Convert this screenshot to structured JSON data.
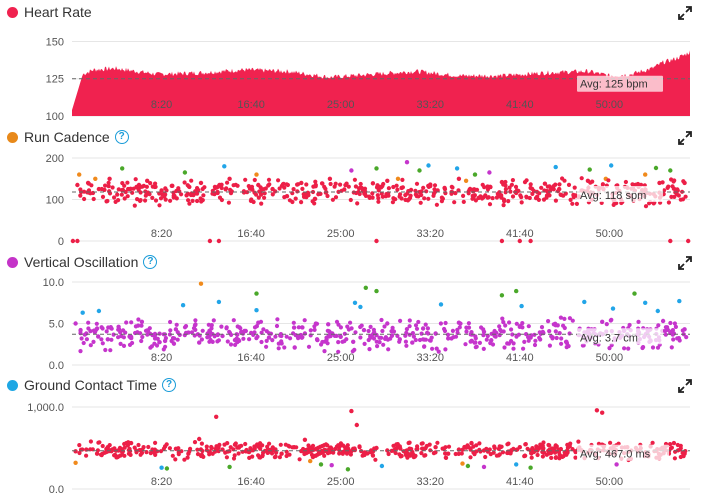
{
  "colors": {
    "heart_rate": "#f0224f",
    "cadence_title": "#e8891a",
    "vertical_title": "#c433c8",
    "gct_title": "#1ea7e4",
    "help": "#1a9cd8",
    "red": "#ec1f47",
    "orange": "#f08a1c",
    "green": "#4aa82a",
    "blue": "#22a5e8",
    "purple": "#c535cc",
    "grid": "#e6e6e6",
    "avg_line": "#666666"
  },
  "x_ticks": [
    "8:20",
    "16:40",
    "25:00",
    "33:20",
    "41:40",
    "50:00"
  ],
  "panels": [
    {
      "id": "heart-rate",
      "title": "Heart Rate",
      "dot_color": "#f0224f",
      "has_help": false,
      "y_ticks": [
        "150",
        "125",
        "100"
      ],
      "avg_label": "Avg: 125 bpm"
    },
    {
      "id": "run-cadence",
      "title": "Run Cadence",
      "dot_color": "#e8891a",
      "has_help": true,
      "y_ticks": [
        "200",
        "100",
        "0"
      ],
      "avg_label": "Avg: 118 spm"
    },
    {
      "id": "vertical-oscillation",
      "title": "Vertical Oscillation",
      "dot_color": "#c433c8",
      "has_help": true,
      "y_ticks": [
        "10.0",
        "5.0",
        "0.0"
      ],
      "avg_label": "Avg: 3.7 cm"
    },
    {
      "id": "ground-contact-time",
      "title": "Ground Contact Time",
      "dot_color": "#1ea7e4",
      "has_help": true,
      "y_ticks": [
        "1,000.0",
        "0.0"
      ],
      "avg_label": "Avg: 467.0 ms"
    }
  ],
  "chart_data": [
    {
      "type": "area",
      "title": "Heart Rate",
      "xlim_seconds": [
        0,
        3450
      ],
      "x_tick_labels": [
        "8:20",
        "16:40",
        "25:00",
        "33:20",
        "41:40",
        "50:00"
      ],
      "ylim": [
        100,
        155
      ],
      "y_ticks": [
        100,
        125,
        150
      ],
      "average": 125,
      "average_label": "Avg: 125 bpm",
      "series": [
        {
          "x": [
            0,
            60,
            120,
            240,
            480,
            720,
            960,
            1200,
            1440,
            1680,
            1920,
            2160,
            2400,
            2640,
            2880,
            3000,
            3120,
            3240,
            3300,
            3360,
            3420,
            3450
          ],
          "values": [
            104,
            128,
            131,
            132,
            128,
            129,
            131,
            130,
            126,
            128,
            130,
            127,
            127,
            129,
            130,
            127,
            128,
            132,
            136,
            138,
            141,
            143
          ]
        }
      ]
    },
    {
      "type": "scatter",
      "title": "Run Cadence",
      "xlim_seconds": [
        0,
        3450
      ],
      "ylim": [
        0,
        200
      ],
      "y_ticks": [
        0,
        100,
        200
      ],
      "average": 118,
      "average_label": "Avg: 118 spm",
      "series": [
        {
          "color": "red",
          "x": [
            30,
            90,
            150,
            210,
            300,
            360,
            420,
            500,
            560,
            640,
            720,
            800,
            880,
            960,
            1040,
            1120,
            1200,
            1280,
            1360,
            1440,
            1520,
            1600,
            1680,
            1760,
            1840,
            1920,
            2000,
            2080,
            2160,
            2240,
            2320,
            2400,
            2480,
            2560,
            2640,
            2720,
            2800,
            2880,
            2960,
            3040,
            3120,
            3200,
            3280,
            3360,
            3420
          ],
          "values": [
            135,
            140,
            125,
            150,
            118,
            130,
            145,
            122,
            133,
            110,
            140,
            128,
            150,
            117,
            135,
            125,
            108,
            140,
            132,
            150,
            124,
            118,
            139,
            145,
            128,
            112,
            136,
            128,
            150,
            120,
            131,
            142,
            116,
            128,
            138,
            125,
            110,
            145,
            129,
            133,
            108,
            122,
            140,
            126,
            140
          ]
        },
        {
          "color": "red",
          "x": [
            5,
            30,
            770,
            820,
            1700,
            2400,
            2500,
            2560,
            3340,
            3440
          ],
          "values": [
            0,
            0,
            0,
            0,
            0,
            0,
            0,
            0,
            0,
            0
          ]
        },
        {
          "color": "orange",
          "x": [
            40,
            130,
            1030,
            1820,
            2200,
            2980,
            3200
          ],
          "values": [
            160,
            150,
            160,
            150,
            145,
            150,
            160
          ]
        },
        {
          "color": "green",
          "x": [
            280,
            630,
            1700,
            1940,
            2250,
            2890,
            3260,
            3340
          ],
          "values": [
            175,
            165,
            175,
            170,
            160,
            172,
            176,
            170
          ]
        },
        {
          "color": "blue",
          "x": [
            850,
            1990,
            2150,
            2700,
            3010
          ],
          "values": [
            180,
            182,
            175,
            178,
            182
          ]
        },
        {
          "color": "purple",
          "x": [
            1870,
            1560,
            2330
          ],
          "values": [
            190,
            170,
            165
          ]
        }
      ]
    },
    {
      "type": "scatter",
      "title": "Vertical Oscillation",
      "xlim_seconds": [
        0,
        3450
      ],
      "ylim": [
        0,
        10
      ],
      "y_ticks": [
        0.0,
        5.0,
        10.0
      ],
      "average": 3.7,
      "average_label": "Avg: 3.7 cm",
      "series": [
        {
          "color": "purple",
          "x": [
            20,
            80,
            140,
            200,
            260,
            330,
            390,
            450,
            520,
            580,
            650,
            710,
            780,
            840,
            910,
            970,
            1040,
            1100,
            1170,
            1240,
            1300,
            1370,
            1430,
            1500,
            1570,
            1630,
            1700,
            1760,
            1830,
            1900,
            1960,
            2030,
            2100,
            2160,
            2230,
            2300,
            2360,
            2430,
            2500,
            2560,
            2630,
            2700,
            2760,
            2830,
            2900,
            2960,
            3030,
            3100,
            3160,
            3230,
            3300,
            3360,
            3420
          ],
          "values": [
            5.0,
            3.8,
            4.4,
            3.1,
            4.6,
            3.4,
            5.2,
            3.6,
            2.9,
            4.3,
            3.9,
            2.7,
            4.8,
            3.5,
            3.0,
            4.1,
            5.1,
            3.3,
            2.6,
            4.5,
            3.8,
            3.0,
            4.9,
            3.4,
            2.8,
            4.2,
            3.6,
            5.0,
            3.1,
            2.7,
            4.4,
            3.8,
            3.2,
            5.1,
            2.9,
            4.0,
            3.5,
            2.6,
            4.6,
            3.3,
            3.9,
            4.8,
            2.8,
            3.6,
            4.3,
            5.2,
            3.0,
            3.7,
            4.1,
            2.9,
            5.3,
            3.8,
            4.3
          ]
        },
        {
          "color": "blue",
          "x": [
            60,
            150,
            620,
            820,
            1030,
            1580,
            1610,
            2060,
            2510,
            2860,
            3020,
            3200,
            3270,
            3390
          ],
          "values": [
            6.3,
            6.5,
            7.2,
            7.6,
            6.6,
            7.5,
            7.0,
            7.3,
            7.1,
            7.6,
            6.8,
            7.5,
            6.5,
            7.7
          ]
        },
        {
          "color": "green",
          "x": [
            1030,
            1640,
            1700,
            2400,
            2480,
            3140
          ],
          "values": [
            8.6,
            9.3,
            8.9,
            8.4,
            8.9,
            8.6
          ]
        },
        {
          "color": "orange",
          "x": [
            720
          ],
          "values": [
            9.8
          ]
        }
      ]
    },
    {
      "type": "scatter",
      "title": "Ground Contact Time",
      "xlim_seconds": [
        0,
        3450
      ],
      "ylim": [
        0,
        1000
      ],
      "y_ticks": [
        0.0,
        1000.0
      ],
      "average": 467.0,
      "average_label": "Avg: 467.0 ms",
      "series": [
        {
          "color": "red",
          "x": [
            20,
            80,
            140,
            200,
            260,
            330,
            390,
            450,
            520,
            580,
            650,
            710,
            780,
            840,
            910,
            970,
            1040,
            1100,
            1170,
            1240,
            1300,
            1370,
            1430,
            1500,
            1570,
            1630,
            1700,
            1760,
            1830,
            1900,
            1960,
            2030,
            2100,
            2160,
            2230,
            2300,
            2360,
            2430,
            2500,
            2560,
            2630,
            2700,
            2760,
            2830,
            2900,
            2960,
            3030,
            3100,
            3160,
            3230,
            3300,
            3360,
            3420
          ],
          "values": [
            460,
            480,
            430,
            510,
            470,
            560,
            440,
            470,
            520,
            490,
            430,
            610,
            500,
            480,
            540,
            460,
            520,
            470,
            430,
            510,
            600,
            480,
            460,
            530,
            490,
            440,
            500,
            470,
            520,
            450,
            490,
            510,
            430,
            480,
            560,
            470,
            500,
            440,
            510,
            470,
            490,
            530,
            460,
            500,
            470,
            540,
            480,
            510,
            460,
            520,
            480,
            560,
            430
          ]
        },
        {
          "color": "red",
          "x": [
            805,
            1560,
            1590,
            2930,
            2960
          ],
          "values": [
            880,
            950,
            780,
            960,
            930
          ]
        },
        {
          "color": "blue",
          "x": [
            500,
            1730,
            2480
          ],
          "values": [
            260,
            280,
            300
          ]
        },
        {
          "color": "green",
          "x": [
            530,
            880,
            1390,
            1540,
            2210,
            2560
          ],
          "values": [
            250,
            270,
            300,
            240,
            280,
            260
          ]
        },
        {
          "color": "orange",
          "x": [
            20,
            1330,
            2180
          ],
          "values": [
            320,
            340,
            310
          ]
        },
        {
          "color": "purple",
          "x": [
            1450,
            2300,
            3040
          ],
          "values": [
            290,
            270,
            300
          ]
        }
      ]
    }
  ]
}
